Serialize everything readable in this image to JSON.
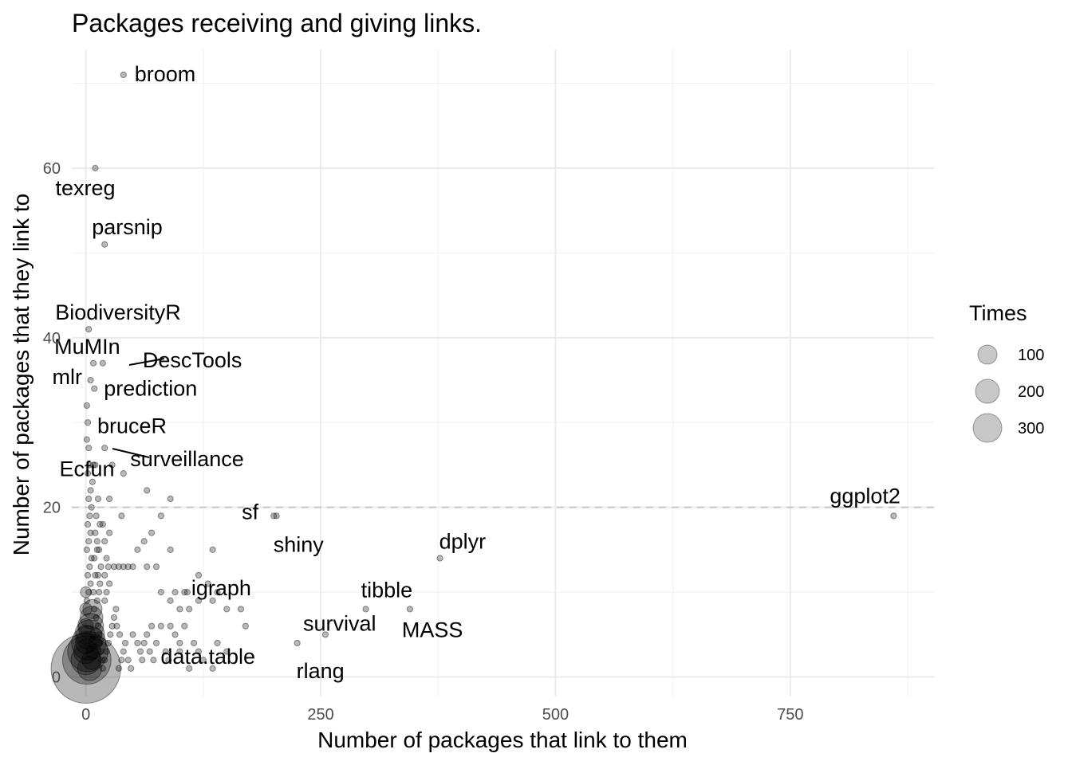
{
  "chart_data": {
    "type": "scatter",
    "title": "Packages receiving and giving links.",
    "xlabel": "Number of packages that link to them",
    "ylabel": "Number of packages that they link to",
    "xlim": [
      -15,
      903
    ],
    "ylim": [
      -2.3,
      74
    ],
    "x_ticks": [
      0,
      250,
      500,
      750
    ],
    "y_ticks": [
      0,
      20,
      40,
      60
    ],
    "grid": true,
    "reference_line": {
      "y": 20,
      "style": "dashed"
    },
    "legend": {
      "title": "Times",
      "position": "right",
      "entries": [
        {
          "label": "100",
          "value": 100
        },
        {
          "label": "200",
          "value": 200
        },
        {
          "label": "300",
          "value": 300
        }
      ]
    },
    "labeled_points": [
      {
        "name": "broom",
        "x": 40,
        "y": 71
      },
      {
        "name": "texreg",
        "x": 10,
        "y": 60
      },
      {
        "name": "parsnip",
        "x": 20,
        "y": 51
      },
      {
        "name": "BiodiversityR",
        "x": 3,
        "y": 41
      },
      {
        "name": "MuMIn",
        "x": 8,
        "y": 37
      },
      {
        "name": "DescTools",
        "x": 18,
        "y": 37
      },
      {
        "name": "mlr",
        "x": 5,
        "y": 35
      },
      {
        "name": "prediction",
        "x": 9,
        "y": 34
      },
      {
        "name": "bruceR",
        "x": 2,
        "y": 30
      },
      {
        "name": "surveillance",
        "x": 3,
        "y": 27
      },
      {
        "name": "Ecfun",
        "x": 10,
        "y": 25
      },
      {
        "name": "sf",
        "x": 200,
        "y": 19
      },
      {
        "name": "shiny",
        "x": 203,
        "y": 19
      },
      {
        "name": "ggplot2",
        "x": 860,
        "y": 19
      },
      {
        "name": "dplyr",
        "x": 377,
        "y": 14
      },
      {
        "name": "igraph",
        "x": 108,
        "y": 10
      },
      {
        "name": "tibble",
        "x": 298,
        "y": 8
      },
      {
        "name": "MASS",
        "x": 345,
        "y": 8
      },
      {
        "name": "survival",
        "x": 255,
        "y": 5
      },
      {
        "name": "data.table",
        "x": 100,
        "y": 4
      },
      {
        "name": "rlang",
        "x": 225,
        "y": 4
      }
    ],
    "points": [
      {
        "x": 0,
        "y": 1,
        "times": 330
      },
      {
        "x": 1,
        "y": 2,
        "times": 160
      },
      {
        "x": 2,
        "y": 3,
        "times": 110
      },
      {
        "x": 3,
        "y": 4,
        "times": 80
      },
      {
        "x": 4,
        "y": 5,
        "times": 60
      },
      {
        "x": 5,
        "y": 6,
        "times": 45
      },
      {
        "x": 6,
        "y": 7,
        "times": 35
      },
      {
        "x": 7,
        "y": 8,
        "times": 25
      },
      {
        "x": 0,
        "y": 2,
        "times": 60
      },
      {
        "x": 0,
        "y": 3,
        "times": 40
      },
      {
        "x": 0,
        "y": 4,
        "times": 30
      },
      {
        "x": 0,
        "y": 5,
        "times": 25
      },
      {
        "x": 0,
        "y": 6,
        "times": 15
      },
      {
        "x": 0,
        "y": 8,
        "times": 10
      },
      {
        "x": 0,
        "y": 10,
        "times": 8
      },
      {
        "x": 4,
        "y": 1,
        "times": 40
      },
      {
        "x": 6,
        "y": 2,
        "times": 25
      },
      {
        "x": 8,
        "y": 3,
        "times": 15
      },
      {
        "x": 10,
        "y": 4,
        "times": 12
      },
      {
        "x": 11,
        "y": 5,
        "times": 10
      },
      {
        "x": 1,
        "y": 9
      },
      {
        "x": 3,
        "y": 10
      },
      {
        "x": 5,
        "y": 11
      },
      {
        "x": 2,
        "y": 12
      },
      {
        "x": 4,
        "y": 13
      },
      {
        "x": 6,
        "y": 14
      },
      {
        "x": 1,
        "y": 15
      },
      {
        "x": 3,
        "y": 16
      },
      {
        "x": 5,
        "y": 17
      },
      {
        "x": 2,
        "y": 18
      },
      {
        "x": 4,
        "y": 19
      },
      {
        "x": 6,
        "y": 20
      },
      {
        "x": 3,
        "y": 21
      },
      {
        "x": 5,
        "y": 22
      },
      {
        "x": 7,
        "y": 23
      },
      {
        "x": 2,
        "y": 24
      },
      {
        "x": 4,
        "y": 25
      },
      {
        "x": 8,
        "y": 25
      },
      {
        "x": 1,
        "y": 28
      },
      {
        "x": 1,
        "y": 32
      },
      {
        "x": 12,
        "y": 9
      },
      {
        "x": 14,
        "y": 10
      },
      {
        "x": 15,
        "y": 11
      },
      {
        "x": 13,
        "y": 12
      },
      {
        "x": 16,
        "y": 13
      },
      {
        "x": 14,
        "y": 15
      },
      {
        "x": 12,
        "y": 16
      },
      {
        "x": 10,
        "y": 17
      },
      {
        "x": 11,
        "y": 19
      },
      {
        "x": 13,
        "y": 21
      },
      {
        "x": 15,
        "y": 18
      },
      {
        "x": 9,
        "y": 14
      },
      {
        "x": 10,
        "y": 12
      },
      {
        "x": 8,
        "y": 10
      },
      {
        "x": 9,
        "y": 8
      },
      {
        "x": 11,
        "y": 7
      },
      {
        "x": 13,
        "y": 6
      },
      {
        "x": 14,
        "y": 5
      },
      {
        "x": 15,
        "y": 4
      },
      {
        "x": 16,
        "y": 3
      },
      {
        "x": 17,
        "y": 2
      },
      {
        "x": 18,
        "y": 1
      },
      {
        "x": 20,
        "y": 2
      },
      {
        "x": 22,
        "y": 3
      },
      {
        "x": 24,
        "y": 4
      },
      {
        "x": 26,
        "y": 5
      },
      {
        "x": 28,
        "y": 6
      },
      {
        "x": 30,
        "y": 7
      },
      {
        "x": 32,
        "y": 8
      },
      {
        "x": 20,
        "y": 9
      },
      {
        "x": 22,
        "y": 10
      },
      {
        "x": 25,
        "y": 11
      },
      {
        "x": 20,
        "y": 12
      },
      {
        "x": 24,
        "y": 13
      },
      {
        "x": 22,
        "y": 14
      },
      {
        "x": 20,
        "y": 16
      },
      {
        "x": 25,
        "y": 17
      },
      {
        "x": 18,
        "y": 18
      },
      {
        "x": 12,
        "y": 15
      },
      {
        "x": 35,
        "y": 1
      },
      {
        "x": 38,
        "y": 2
      },
      {
        "x": 40,
        "y": 3
      },
      {
        "x": 42,
        "y": 4
      },
      {
        "x": 36,
        "y": 5
      },
      {
        "x": 33,
        "y": 6
      },
      {
        "x": 45,
        "y": 2
      },
      {
        "x": 48,
        "y": 1
      },
      {
        "x": 50,
        "y": 5
      },
      {
        "x": 55,
        "y": 4
      },
      {
        "x": 58,
        "y": 3
      },
      {
        "x": 60,
        "y": 2
      },
      {
        "x": 62,
        "y": 4
      },
      {
        "x": 65,
        "y": 5
      },
      {
        "x": 68,
        "y": 3
      },
      {
        "x": 70,
        "y": 6
      },
      {
        "x": 72,
        "y": 2
      },
      {
        "x": 75,
        "y": 4
      },
      {
        "x": 80,
        "y": 6
      },
      {
        "x": 85,
        "y": 3
      },
      {
        "x": 88,
        "y": 2
      },
      {
        "x": 90,
        "y": 6
      },
      {
        "x": 95,
        "y": 5
      },
      {
        "x": 100,
        "y": 3
      },
      {
        "x": 105,
        "y": 6
      },
      {
        "x": 110,
        "y": 1
      },
      {
        "x": 115,
        "y": 4
      },
      {
        "x": 120,
        "y": 3
      },
      {
        "x": 125,
        "y": 2
      },
      {
        "x": 135,
        "y": 1
      },
      {
        "x": 140,
        "y": 4
      },
      {
        "x": 150,
        "y": 3
      },
      {
        "x": 30,
        "y": 13
      },
      {
        "x": 35,
        "y": 13
      },
      {
        "x": 40,
        "y": 13
      },
      {
        "x": 45,
        "y": 13
      },
      {
        "x": 50,
        "y": 13
      },
      {
        "x": 38,
        "y": 19
      },
      {
        "x": 25,
        "y": 21
      },
      {
        "x": 65,
        "y": 22
      },
      {
        "x": 90,
        "y": 21
      },
      {
        "x": 70,
        "y": 17
      },
      {
        "x": 55,
        "y": 15
      },
      {
        "x": 62,
        "y": 16
      },
      {
        "x": 80,
        "y": 19
      },
      {
        "x": 65,
        "y": 13
      },
      {
        "x": 75,
        "y": 13
      },
      {
        "x": 80,
        "y": 10
      },
      {
        "x": 90,
        "y": 9
      },
      {
        "x": 90,
        "y": 15
      },
      {
        "x": 95,
        "y": 10
      },
      {
        "x": 105,
        "y": 10
      },
      {
        "x": 100,
        "y": 8
      },
      {
        "x": 120,
        "y": 12
      },
      {
        "x": 130,
        "y": 11
      },
      {
        "x": 135,
        "y": 9
      },
      {
        "x": 140,
        "y": 10
      },
      {
        "x": 150,
        "y": 8
      },
      {
        "x": 165,
        "y": 8
      },
      {
        "x": 170,
        "y": 6
      },
      {
        "x": 135,
        "y": 15
      },
      {
        "x": 120,
        "y": 9
      },
      {
        "x": 110,
        "y": 8
      },
      {
        "x": 28,
        "y": 25
      },
      {
        "x": 40,
        "y": 24
      },
      {
        "x": 20,
        "y": 27
      },
      {
        "x": 18,
        "y": 37
      },
      {
        "x": 8,
        "y": 37
      },
      {
        "x": 9,
        "y": 34
      },
      {
        "x": 5,
        "y": 35
      },
      {
        "x": 3,
        "y": 41
      },
      {
        "x": 2,
        "y": 30
      },
      {
        "x": 3,
        "y": 27
      },
      {
        "x": 10,
        "y": 25
      },
      {
        "x": 40,
        "y": 71
      },
      {
        "x": 10,
        "y": 60
      },
      {
        "x": 20,
        "y": 51
      },
      {
        "x": 200,
        "y": 19
      },
      {
        "x": 203,
        "y": 19
      },
      {
        "x": 860,
        "y": 19
      },
      {
        "x": 377,
        "y": 14
      },
      {
        "x": 108,
        "y": 10
      },
      {
        "x": 298,
        "y": 8
      },
      {
        "x": 345,
        "y": 8
      },
      {
        "x": 255,
        "y": 5
      },
      {
        "x": 225,
        "y": 4
      },
      {
        "x": 100,
        "y": 4
      }
    ]
  }
}
